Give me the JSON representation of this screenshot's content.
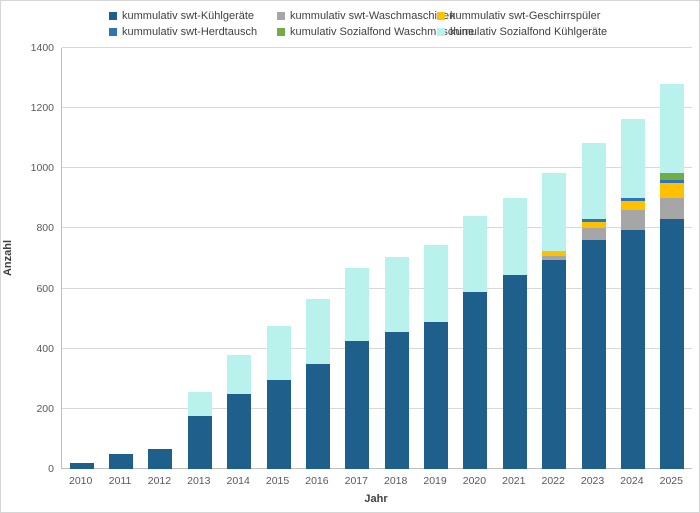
{
  "chart_data": {
    "type": "bar",
    "stacked": true,
    "title": "",
    "xlabel": "Jahr",
    "ylabel": "Anzahl",
    "ylim": [
      0,
      1400
    ],
    "yticks": [
      0,
      200,
      400,
      600,
      800,
      1000,
      1200,
      1400
    ],
    "grid": true,
    "gridline_color": "#d9d9d9",
    "legend_position": "top",
    "categories": [
      "2010",
      "2011",
      "2012",
      "2013",
      "2014",
      "2015",
      "2016",
      "2017",
      "2018",
      "2019",
      "2020",
      "2021",
      "2022",
      "2023",
      "2024",
      "2025"
    ],
    "series": [
      {
        "name": "kummulativ swt-Kühlgeräte",
        "color": "#1e5f8c",
        "values": [
          20,
          50,
          65,
          175,
          250,
          295,
          350,
          425,
          455,
          490,
          590,
          645,
          695,
          760,
          795,
          830
        ]
      },
      {
        "name": "kummulativ swt-Waschmaschinen",
        "color": "#a6a6a6",
        "values": [
          0,
          0,
          0,
          0,
          0,
          0,
          0,
          0,
          0,
          0,
          0,
          0,
          15,
          40,
          65,
          70
        ]
      },
      {
        "name": "kummulativ swt-Geschirrspüler",
        "color": "#ffc000",
        "values": [
          0,
          0,
          0,
          0,
          0,
          0,
          0,
          0,
          0,
          0,
          0,
          0,
          15,
          20,
          30,
          50
        ]
      },
      {
        "name": "kummulativ swt-Herdtausch",
        "color": "#2e75b6",
        "values": [
          0,
          0,
          0,
          0,
          0,
          0,
          0,
          0,
          0,
          0,
          0,
          0,
          0,
          10,
          10,
          10
        ]
      },
      {
        "name": "kumulativ Sozialfond Waschmaschine",
        "color": "#70ad47",
        "values": [
          0,
          0,
          0,
          0,
          0,
          0,
          0,
          0,
          0,
          0,
          0,
          0,
          0,
          0,
          0,
          25
        ]
      },
      {
        "name": "kumulativ Sozialfond Kühlgeräte",
        "color": "#b9f2ec",
        "values": [
          0,
          0,
          0,
          80,
          130,
          180,
          215,
          245,
          250,
          255,
          250,
          255,
          260,
          255,
          265,
          295
        ]
      }
    ]
  }
}
